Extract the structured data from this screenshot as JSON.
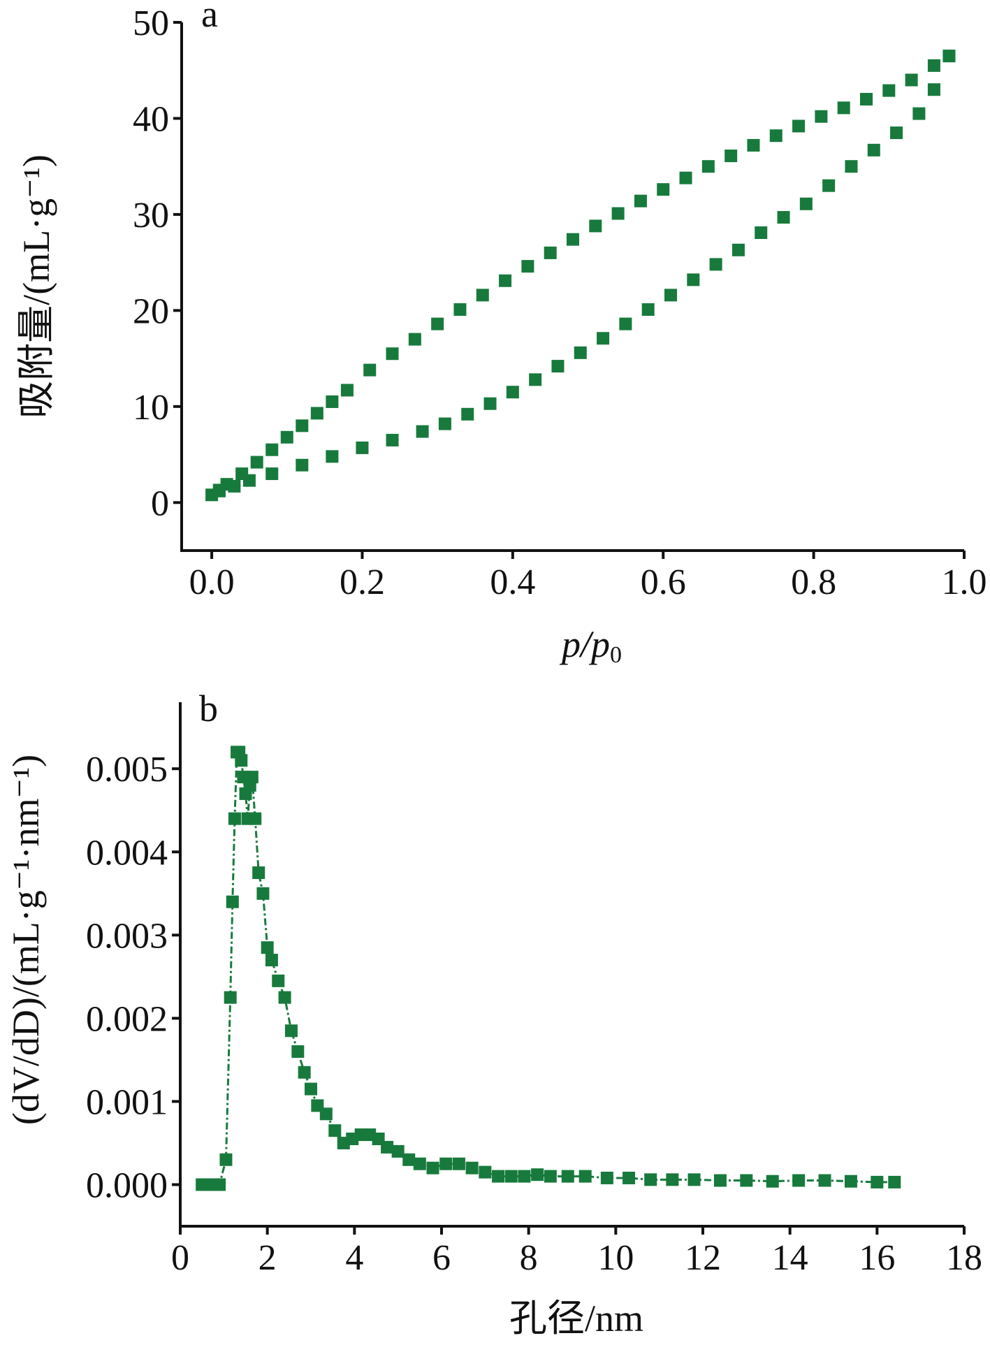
{
  "colors": {
    "series": "#177a3c",
    "axis": "#111111",
    "background": "#ffffff"
  },
  "marker": "square",
  "chart_data": [
    {
      "type": "scatter",
      "panel_label": "a",
      "title": "",
      "xlabel_main": "p/p",
      "xlabel_sub": "0",
      "ylabel": "吸附量/(mL·g⁻¹)",
      "xlim": [
        -0.04,
        1.0
      ],
      "ylim": [
        -5,
        50
      ],
      "xticks": [
        "0.0",
        "0.2",
        "0.4",
        "0.6",
        "0.8",
        "1.0"
      ],
      "yticks": [
        "0",
        "10",
        "20",
        "30",
        "40",
        "50"
      ],
      "grid": false,
      "legend": "none",
      "series": [
        {
          "x": [
            0.0,
            0.01,
            0.02,
            0.04,
            0.06,
            0.08,
            0.1,
            0.12,
            0.14,
            0.16,
            0.18,
            0.21,
            0.24,
            0.27,
            0.3,
            0.33,
            0.36,
            0.39,
            0.42,
            0.45,
            0.48,
            0.51,
            0.54,
            0.57,
            0.6,
            0.63,
            0.66,
            0.69,
            0.72,
            0.75,
            0.78,
            0.81,
            0.84,
            0.87,
            0.9,
            0.93,
            0.96,
            0.98
          ],
          "y": [
            0.8,
            1.3,
            1.9,
            3.0,
            4.2,
            5.5,
            6.8,
            8.0,
            9.3,
            10.5,
            11.7,
            13.8,
            15.5,
            17.0,
            18.6,
            20.1,
            21.6,
            23.1,
            24.6,
            26.0,
            27.4,
            28.8,
            30.1,
            31.4,
            32.6,
            33.8,
            35.0,
            36.1,
            37.2,
            38.2,
            39.2,
            40.2,
            41.1,
            42.0,
            42.9,
            44.0,
            45.5,
            46.5
          ]
        },
        {
          "x": [
            0.98,
            0.96,
            0.94,
            0.91,
            0.88,
            0.85,
            0.82,
            0.79,
            0.76,
            0.73,
            0.7,
            0.67,
            0.64,
            0.61,
            0.58,
            0.55,
            0.52,
            0.49,
            0.46,
            0.43,
            0.4,
            0.37,
            0.34,
            0.31,
            0.28,
            0.24,
            0.2,
            0.16,
            0.12,
            0.08,
            0.05,
            0.03,
            0.01
          ],
          "y": [
            46.5,
            43.0,
            40.5,
            38.5,
            36.7,
            35.0,
            33.0,
            31.1,
            29.7,
            28.1,
            26.3,
            24.8,
            23.2,
            21.6,
            20.1,
            18.6,
            17.1,
            15.6,
            14.2,
            12.8,
            11.5,
            10.3,
            9.2,
            8.2,
            7.4,
            6.5,
            5.7,
            4.8,
            3.9,
            3.0,
            2.3,
            1.7,
            1.2
          ]
        }
      ]
    },
    {
      "type": "line",
      "panel_label": "b",
      "title": "",
      "xlabel": "孔径/nm",
      "ylabel": "(dV/dD)/(mL·g⁻¹·nm⁻¹)",
      "xlim": [
        0,
        18
      ],
      "ylim": [
        -0.0005,
        0.0058
      ],
      "xticks": [
        "0",
        "2",
        "4",
        "6",
        "8",
        "10",
        "12",
        "14",
        "16",
        "18"
      ],
      "yticks": [
        "0.000",
        "0.001",
        "0.002",
        "0.003",
        "0.004",
        "0.005"
      ],
      "grid": false,
      "legend": "none",
      "series": [
        {
          "x": [
            0.5,
            0.7,
            0.9,
            1.05,
            1.15,
            1.2,
            1.25,
            1.3,
            1.35,
            1.4,
            1.45,
            1.5,
            1.55,
            1.6,
            1.65,
            1.72,
            1.8,
            1.9,
            2.0,
            2.1,
            2.25,
            2.4,
            2.55,
            2.7,
            2.85,
            3.0,
            3.15,
            3.35,
            3.55,
            3.75,
            3.95,
            4.15,
            4.35,
            4.55,
            4.75,
            5.0,
            5.25,
            5.5,
            5.8,
            6.1,
            6.4,
            6.7,
            7.0,
            7.3,
            7.6,
            7.9,
            8.2,
            8.5,
            8.9,
            9.3,
            9.8,
            10.3,
            10.8,
            11.3,
            11.8,
            12.4,
            13.0,
            13.6,
            14.2,
            14.8,
            15.4,
            16.0,
            16.4
          ],
          "y": [
            0.0,
            0.0,
            0.0,
            0.0003,
            0.00225,
            0.0034,
            0.0044,
            0.0052,
            0.0052,
            0.0051,
            0.0049,
            0.0047,
            0.0044,
            0.0048,
            0.0049,
            0.0044,
            0.00375,
            0.0035,
            0.00285,
            0.0027,
            0.00245,
            0.00225,
            0.00185,
            0.0016,
            0.00135,
            0.00115,
            0.00095,
            0.00085,
            0.00065,
            0.0005,
            0.00055,
            0.0006,
            0.0006,
            0.00055,
            0.00045,
            0.0004,
            0.0003,
            0.00025,
            0.0002,
            0.00025,
            0.00025,
            0.0002,
            0.00015,
            0.0001,
            0.0001,
            0.0001,
            0.00012,
            0.0001,
            0.0001,
            0.0001,
            8e-05,
            8e-05,
            6e-05,
            6e-05,
            6e-05,
            5e-05,
            5e-05,
            4e-05,
            5e-05,
            5e-05,
            4e-05,
            3e-05,
            3e-05
          ]
        }
      ]
    }
  ]
}
